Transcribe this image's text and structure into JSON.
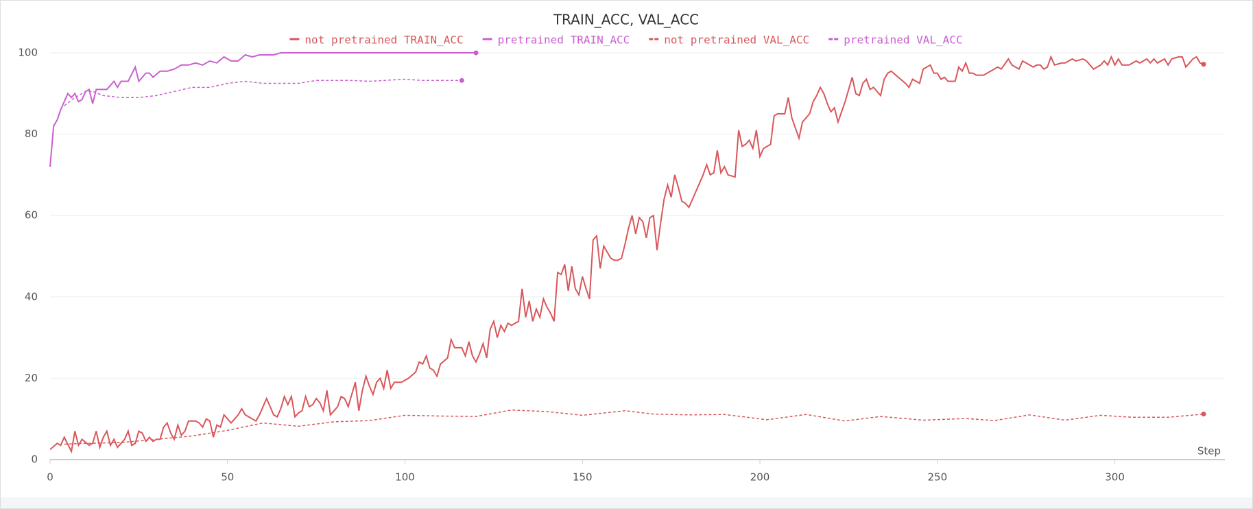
{
  "chart_data": {
    "type": "line",
    "title": "TRAIN_ACC, VAL_ACC",
    "x_label": "Step",
    "xlim": [
      0,
      331
    ],
    "xticks": [
      0,
      50,
      100,
      150,
      200,
      250,
      300
    ],
    "ylim": [
      0,
      100
    ],
    "yticks": [
      0,
      20,
      40,
      60,
      80,
      100
    ],
    "grid": true,
    "legend": "top",
    "series": [
      {
        "name": "not pretrained TRAIN_ACC",
        "color": "#d9565a",
        "dashed": false,
        "x": [
          0,
          2,
          3,
          4,
          6,
          7,
          8,
          9,
          11,
          12,
          13,
          14,
          15,
          16,
          17,
          18,
          19,
          21,
          22,
          23,
          24,
          25,
          26,
          27,
          28,
          29,
          30,
          31,
          32,
          33,
          34,
          35,
          36,
          37,
          38,
          39,
          41,
          42,
          43,
          44,
          45,
          46,
          47,
          48,
          49,
          50,
          51,
          52,
          53,
          54,
          55,
          57,
          58,
          59,
          61,
          62,
          63,
          64,
          65,
          66,
          67,
          68,
          69,
          70,
          71,
          72,
          73,
          74,
          75,
          76,
          77,
          78,
          79,
          80,
          81,
          82,
          83,
          84,
          85,
          86,
          87,
          88,
          89,
          90,
          91,
          92,
          93,
          94,
          95,
          96,
          97,
          99,
          101,
          103,
          104,
          105,
          106,
          107,
          108,
          109,
          110,
          112,
          113,
          114,
          116,
          117,
          118,
          119,
          120,
          121,
          122,
          123,
          124,
          125,
          126,
          127,
          128,
          129,
          130,
          131,
          132,
          133,
          134,
          135,
          136,
          137,
          138,
          139,
          140,
          141,
          142,
          143,
          144,
          145,
          146,
          147,
          148,
          149,
          150,
          151,
          152,
          153,
          154,
          155,
          156,
          157,
          158,
          159,
          160,
          161,
          162,
          163,
          164,
          165,
          166,
          167,
          168,
          169,
          170,
          171,
          172,
          173,
          174,
          175,
          176,
          177,
          178,
          179,
          180,
          182,
          184,
          185,
          186,
          187,
          188,
          189,
          190,
          191,
          193,
          194,
          195,
          196,
          197,
          198,
          199,
          200,
          201,
          203,
          204,
          205,
          207,
          208,
          209,
          210,
          211,
          212,
          214,
          215,
          216,
          217,
          218,
          219,
          220,
          221,
          222,
          223,
          224,
          226,
          227,
          228,
          229,
          230,
          231,
          232,
          234,
          235,
          236,
          237,
          239,
          241,
          242,
          243,
          244,
          245,
          246,
          247,
          248,
          249,
          250,
          251,
          252,
          253,
          255,
          256,
          257,
          258,
          259,
          260,
          261,
          262,
          263,
          265,
          267,
          268,
          270,
          271,
          273,
          274,
          276,
          277,
          278,
          279,
          280,
          281,
          282,
          283,
          285,
          286,
          287,
          288,
          289,
          291,
          292,
          294,
          296,
          297,
          298,
          299,
          300,
          301,
          302,
          303,
          304,
          306,
          307,
          308,
          309,
          310,
          311,
          312,
          314,
          315,
          316,
          318,
          319,
          320,
          322,
          323,
          324,
          325
        ],
        "values": [
          2.5,
          4,
          3.5,
          5.5,
          2,
          7,
          3.5,
          5,
          3.5,
          4,
          7,
          3,
          5.5,
          7,
          3.5,
          5,
          3,
          5,
          7,
          3.5,
          4,
          7,
          6.5,
          4.5,
          5.5,
          4.5,
          5,
          5,
          8,
          9,
          6.5,
          5,
          8.5,
          6,
          7,
          9.5,
          9.5,
          9,
          8,
          10,
          9.5,
          5.5,
          8.5,
          8,
          11,
          10,
          9,
          10,
          11,
          12.5,
          11,
          10,
          9.5,
          11,
          15,
          13,
          11,
          10.5,
          12.5,
          15.5,
          13.5,
          15.5,
          10.5,
          11.5,
          12,
          15.5,
          13,
          13.5,
          15,
          14,
          12,
          17,
          11,
          12,
          13,
          15.5,
          15,
          13,
          16,
          19,
          12,
          17,
          20.5,
          18,
          16,
          19,
          20,
          17.5,
          22,
          17.5,
          19,
          19,
          20,
          21.5,
          24,
          23.5,
          25.5,
          22.5,
          22,
          20.5,
          23.5,
          25,
          29.5,
          27.5,
          27.5,
          25.5,
          29,
          25.5,
          24,
          26,
          28.5,
          25,
          32,
          34,
          30,
          33,
          31.5,
          33.5,
          33,
          33.5,
          34,
          42,
          35,
          39,
          34,
          37,
          35,
          39.5,
          37.5,
          36,
          34,
          46,
          45.5,
          48,
          41.5,
          47.5,
          42,
          40.5,
          45,
          42,
          39.5,
          54,
          55,
          47,
          52.5,
          51,
          49.5,
          49,
          49,
          49.5,
          53,
          57,
          60,
          55.5,
          59.5,
          58.5,
          54.5,
          59.5,
          60,
          51.5,
          58,
          64,
          67.5,
          64.5,
          70,
          67,
          63.5,
          63,
          62,
          66,
          70,
          72.5,
          70,
          70.5,
          76,
          70.5,
          72,
          70,
          69.5,
          81,
          77,
          77.5,
          78.5,
          76.5,
          81,
          74.5,
          76.5,
          77.5,
          84.5,
          85,
          85,
          89,
          84,
          81.5,
          79,
          83,
          85,
          88,
          89.5,
          91.5,
          90,
          87.5,
          85.5,
          86.5,
          83,
          85.5,
          88,
          94,
          90,
          89.5,
          92.5,
          93.5,
          91,
          91.5,
          89.5,
          93.5,
          95,
          95.5,
          94,
          92.5,
          91.5,
          93.5,
          93,
          92.5,
          96,
          96.5,
          97,
          95,
          95,
          93.5,
          94,
          93,
          93,
          96.5,
          95.5,
          97.5,
          95,
          95,
          94.5,
          94.5,
          94.5,
          95.5,
          96.5,
          96,
          98.5,
          97,
          96,
          98,
          97,
          96.5,
          97,
          97,
          96,
          96.5,
          99,
          97,
          97.5,
          97.5,
          98,
          98.5,
          98,
          98.5,
          98,
          96,
          97,
          98,
          97,
          99,
          97,
          98.5,
          97,
          97,
          97,
          98,
          97.5,
          98,
          98.5,
          97.5,
          98.5,
          97.5,
          98.5,
          97,
          98.5,
          99,
          99,
          96.5,
          98.5,
          99,
          97.5,
          97.2
        ]
      },
      {
        "name": "pretrained TRAIN_ACC",
        "color": "#c95fd0",
        "dashed": false,
        "x": [
          0,
          1,
          2,
          3,
          5,
          6,
          7,
          8,
          9,
          10,
          11,
          12,
          13,
          15,
          16,
          18,
          19,
          20,
          22,
          24,
          25,
          27,
          28,
          29,
          31,
          33,
          35,
          37,
          39,
          41,
          43,
          45,
          47,
          49,
          51,
          53,
          55,
          57,
          59,
          61,
          63,
          65,
          70,
          75,
          80,
          90,
          100,
          110,
          120
        ],
        "values": [
          72,
          82,
          83.5,
          86,
          90,
          89,
          90,
          88,
          88.5,
          90.5,
          91,
          87.5,
          91,
          91,
          91,
          93,
          91.5,
          93,
          93,
          96.5,
          93,
          95,
          95,
          94,
          95.5,
          95.5,
          96,
          97,
          97,
          97.5,
          97,
          98,
          97.5,
          99,
          98,
          98,
          99.5,
          99,
          99.5,
          99.5,
          99.5,
          100,
          100,
          100,
          100,
          100,
          100,
          100,
          100
        ]
      },
      {
        "name": "not pretrained VAL_ACC",
        "color": "#d9565a",
        "dashed": true,
        "x": [
          4,
          10,
          20,
          30,
          40,
          50,
          60,
          70,
          80,
          90,
          100,
          110,
          120,
          130,
          140,
          150,
          162,
          170,
          180,
          190,
          202,
          213,
          224,
          234,
          246,
          258,
          266,
          276,
          286,
          296,
          305,
          315,
          325
        ],
        "values": [
          3.8,
          4,
          4.2,
          5,
          5.8,
          7.2,
          9,
          8.2,
          9.3,
          9.6,
          10.9,
          10.7,
          10.6,
          12.2,
          11.8,
          10.9,
          12,
          11.2,
          11,
          11.1,
          9.8,
          11.1,
          9.5,
          10.6,
          9.7,
          10.1,
          9.6,
          11,
          9.7,
          10.9,
          10.4,
          10.4,
          11.2
        ]
      },
      {
        "name": "pretrained VAL_ACC",
        "color": "#c95fd0",
        "dashed": true,
        "x": [
          4,
          7,
          10,
          12,
          15,
          20,
          25,
          30,
          35,
          40,
          45,
          50,
          55,
          60,
          65,
          70,
          75,
          80,
          85,
          90,
          100,
          105,
          110,
          116
        ],
        "values": [
          87,
          89,
          90.5,
          90.5,
          89.5,
          89,
          89,
          89.5,
          90.5,
          91.5,
          91.5,
          92.5,
          93,
          92.5,
          92.5,
          92.5,
          93.2,
          93.2,
          93.2,
          93,
          93.5,
          93.2,
          93.2,
          93.2
        ]
      }
    ]
  }
}
